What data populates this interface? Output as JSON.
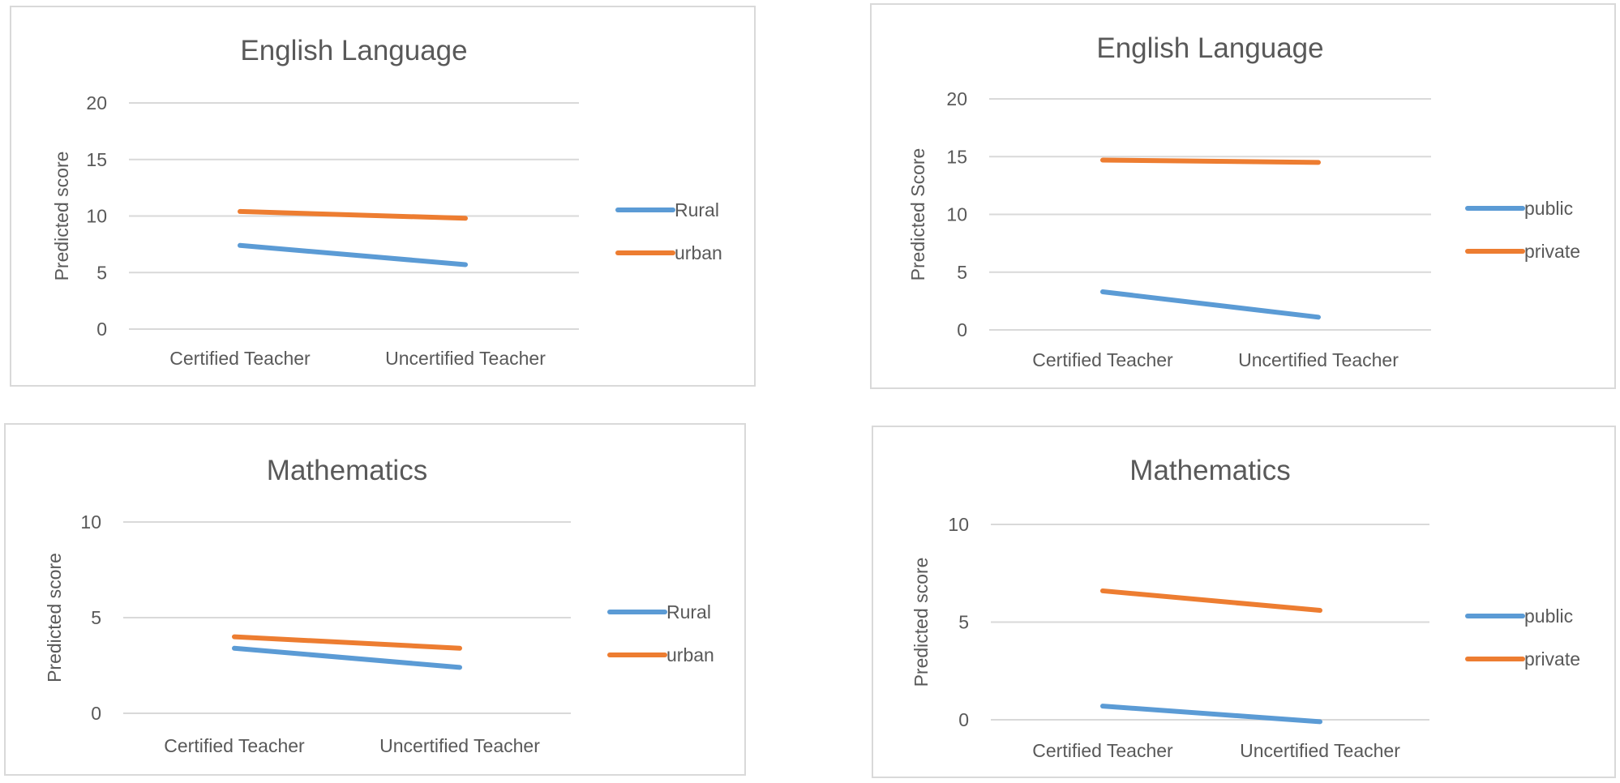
{
  "chart_data": [
    {
      "type": "line",
      "title": "English Language",
      "ylabel": "Predicted score",
      "categories": [
        "Certified Teacher",
        "Uncertified Teacher"
      ],
      "ylim": [
        0,
        20
      ],
      "yticks": [
        "0",
        "5",
        "10",
        "15",
        "20"
      ],
      "yticks_values": [
        0,
        5,
        10,
        15,
        20
      ],
      "grid": true,
      "legend_position": "right",
      "series": [
        {
          "name": "Rural",
          "color": "#5b9bd5",
          "values": [
            7.4,
            5.7
          ]
        },
        {
          "name": "urban",
          "color": "#ed7d31",
          "values": [
            10.4,
            9.8
          ]
        }
      ]
    },
    {
      "type": "line",
      "title": "English Language",
      "ylabel": "Predicted Score",
      "categories": [
        "Certified Teacher",
        "Uncertified Teacher"
      ],
      "ylim": [
        0,
        20
      ],
      "yticks": [
        "0",
        "5",
        "10",
        "15",
        "20"
      ],
      "yticks_values": [
        0,
        5,
        10,
        15,
        20
      ],
      "grid": true,
      "legend_position": "right",
      "series": [
        {
          "name": "public",
          "color": "#5b9bd5",
          "values": [
            3.3,
            1.1
          ]
        },
        {
          "name": "private",
          "color": "#ed7d31",
          "values": [
            14.7,
            14.5
          ]
        }
      ]
    },
    {
      "type": "line",
      "title": "Mathematics",
      "ylabel": "Predicted score",
      "categories": [
        "Certified Teacher",
        "Uncertified Teacher"
      ],
      "ylim": [
        0,
        10
      ],
      "yticks": [
        "0",
        "5",
        "10"
      ],
      "yticks_values": [
        0,
        5,
        10
      ],
      "grid": true,
      "legend_position": "right",
      "series": [
        {
          "name": "Rural",
          "color": "#5b9bd5",
          "values": [
            3.4,
            2.4
          ]
        },
        {
          "name": "urban",
          "color": "#ed7d31",
          "values": [
            4.0,
            3.4
          ]
        }
      ]
    },
    {
      "type": "line",
      "title": "Mathematics",
      "ylabel": "Predicted score",
      "categories": [
        "Certified Teacher",
        "Uncertified Teacher"
      ],
      "ylim": [
        0,
        10
      ],
      "yticks": [
        "0",
        "5",
        "10"
      ],
      "yticks_values": [
        0,
        5,
        10
      ],
      "grid": true,
      "legend_position": "right",
      "series": [
        {
          "name": "public",
          "color": "#5b9bd5",
          "values": [
            0.7,
            -0.1
          ]
        },
        {
          "name": "private",
          "color": "#ed7d31",
          "values": [
            6.6,
            5.6
          ]
        }
      ]
    }
  ]
}
